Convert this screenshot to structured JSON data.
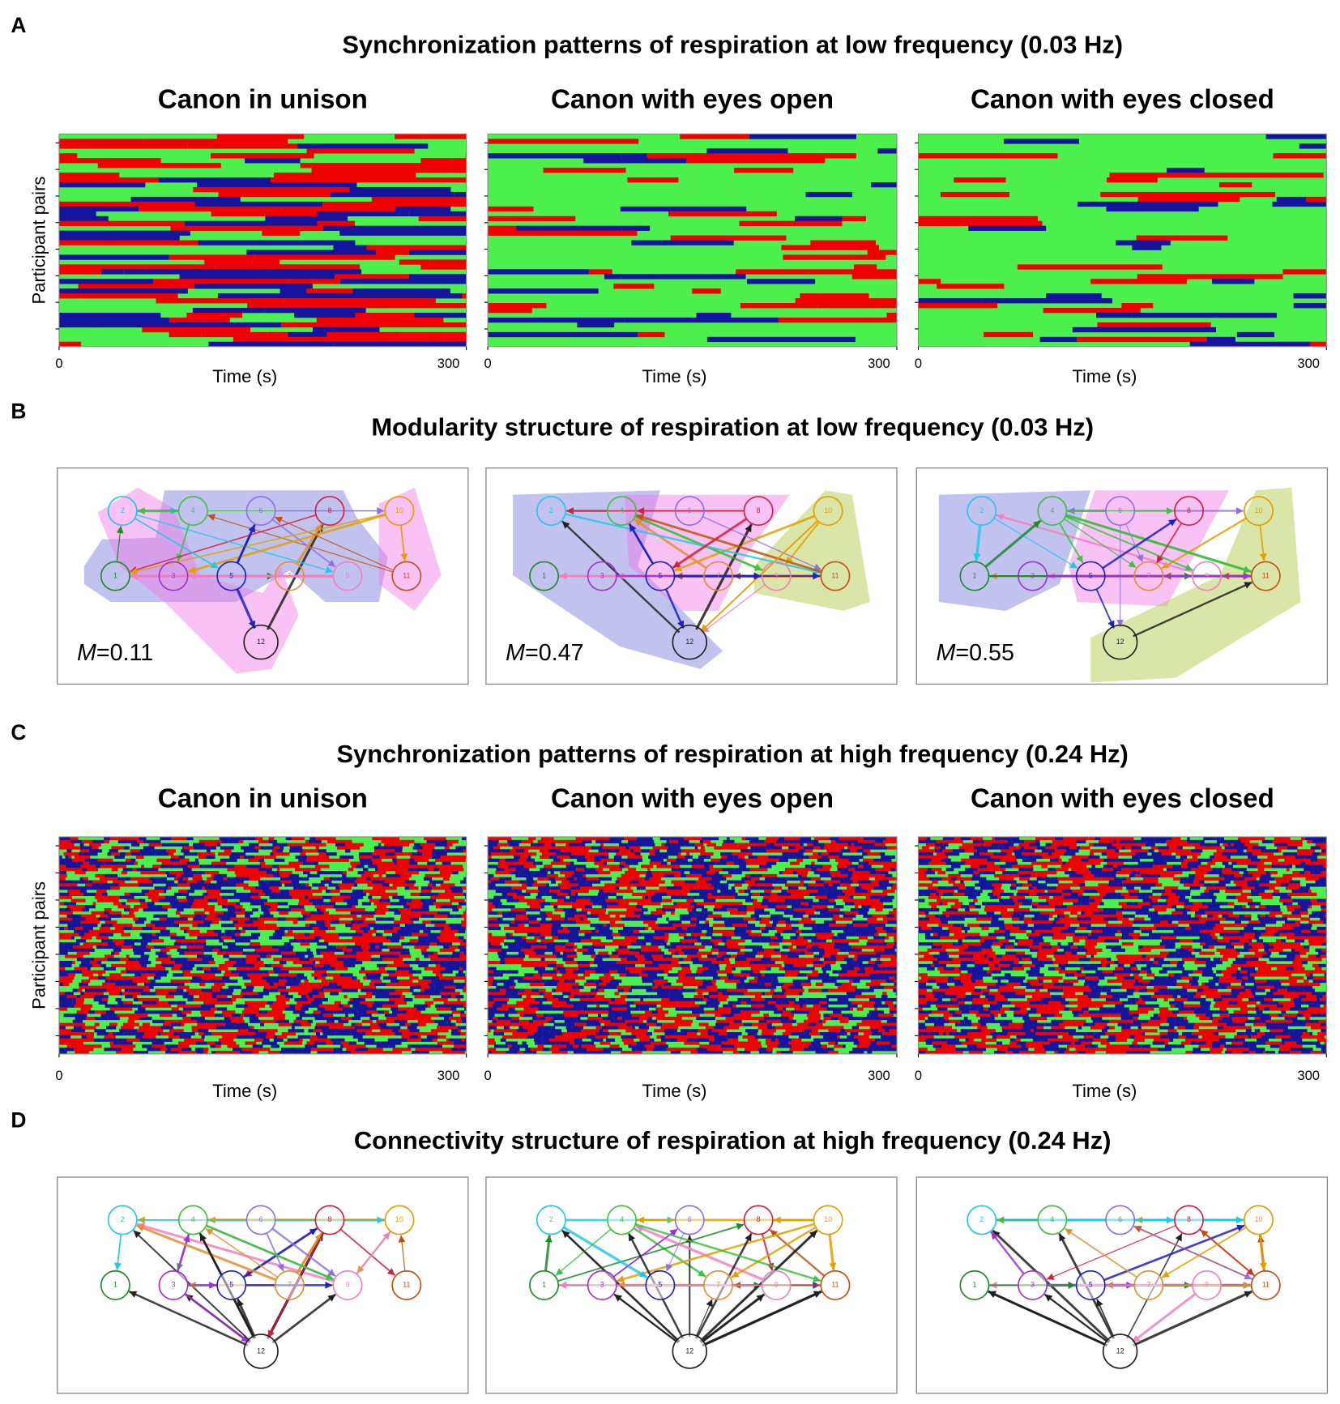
{
  "panels": [
    {
      "letter": "A",
      "title": "Synchronization patterns of respiration at low frequency (0.03 Hz)",
      "plots": [
        {
          "title": "Canon in unison",
          "y_label": "Participant pairs",
          "x_label": "Time (s)",
          "x_ticks": [
            0,
            300
          ]
        },
        {
          "title": "Canon with eyes open",
          "x_label": "Time (s)",
          "x_ticks": [
            0,
            300
          ]
        },
        {
          "title": "Canon with eyes closed",
          "x_label": "Time (s)",
          "x_ticks": [
            0,
            300
          ]
        }
      ]
    },
    {
      "letter": "B",
      "title": "Modularity structure of respiration at low frequency (0.03 Hz)",
      "networks": [
        {
          "modularity_symbol": "M",
          "modularity_text": "=0.11"
        },
        {
          "modularity_symbol": "M",
          "modularity_text": "=0.47"
        },
        {
          "modularity_symbol": "M",
          "modularity_text": "=0.55"
        }
      ]
    },
    {
      "letter": "C",
      "title": "Synchronization patterns of respiration at high frequency (0.24 Hz)",
      "plots": [
        {
          "title": "Canon in unison",
          "y_label": "Participant pairs",
          "x_label": "Time (s)",
          "x_ticks": [
            0,
            300
          ]
        },
        {
          "title": "Canon with eyes open",
          "x_label": "Time (s)",
          "x_ticks": [
            0,
            300
          ]
        },
        {
          "title": "Canon with eyes closed",
          "x_label": "Time (s)",
          "x_ticks": [
            0,
            300
          ]
        }
      ]
    },
    {
      "letter": "D",
      "title": "Connectivity structure of respiration at high frequency (0.24 Hz)",
      "networks": [
        {},
        {},
        {}
      ]
    }
  ],
  "node_labels": [
    "1",
    "2",
    "3",
    "4",
    "5",
    "6",
    "7",
    "8",
    "9",
    "10",
    "11",
    "12"
  ]
}
